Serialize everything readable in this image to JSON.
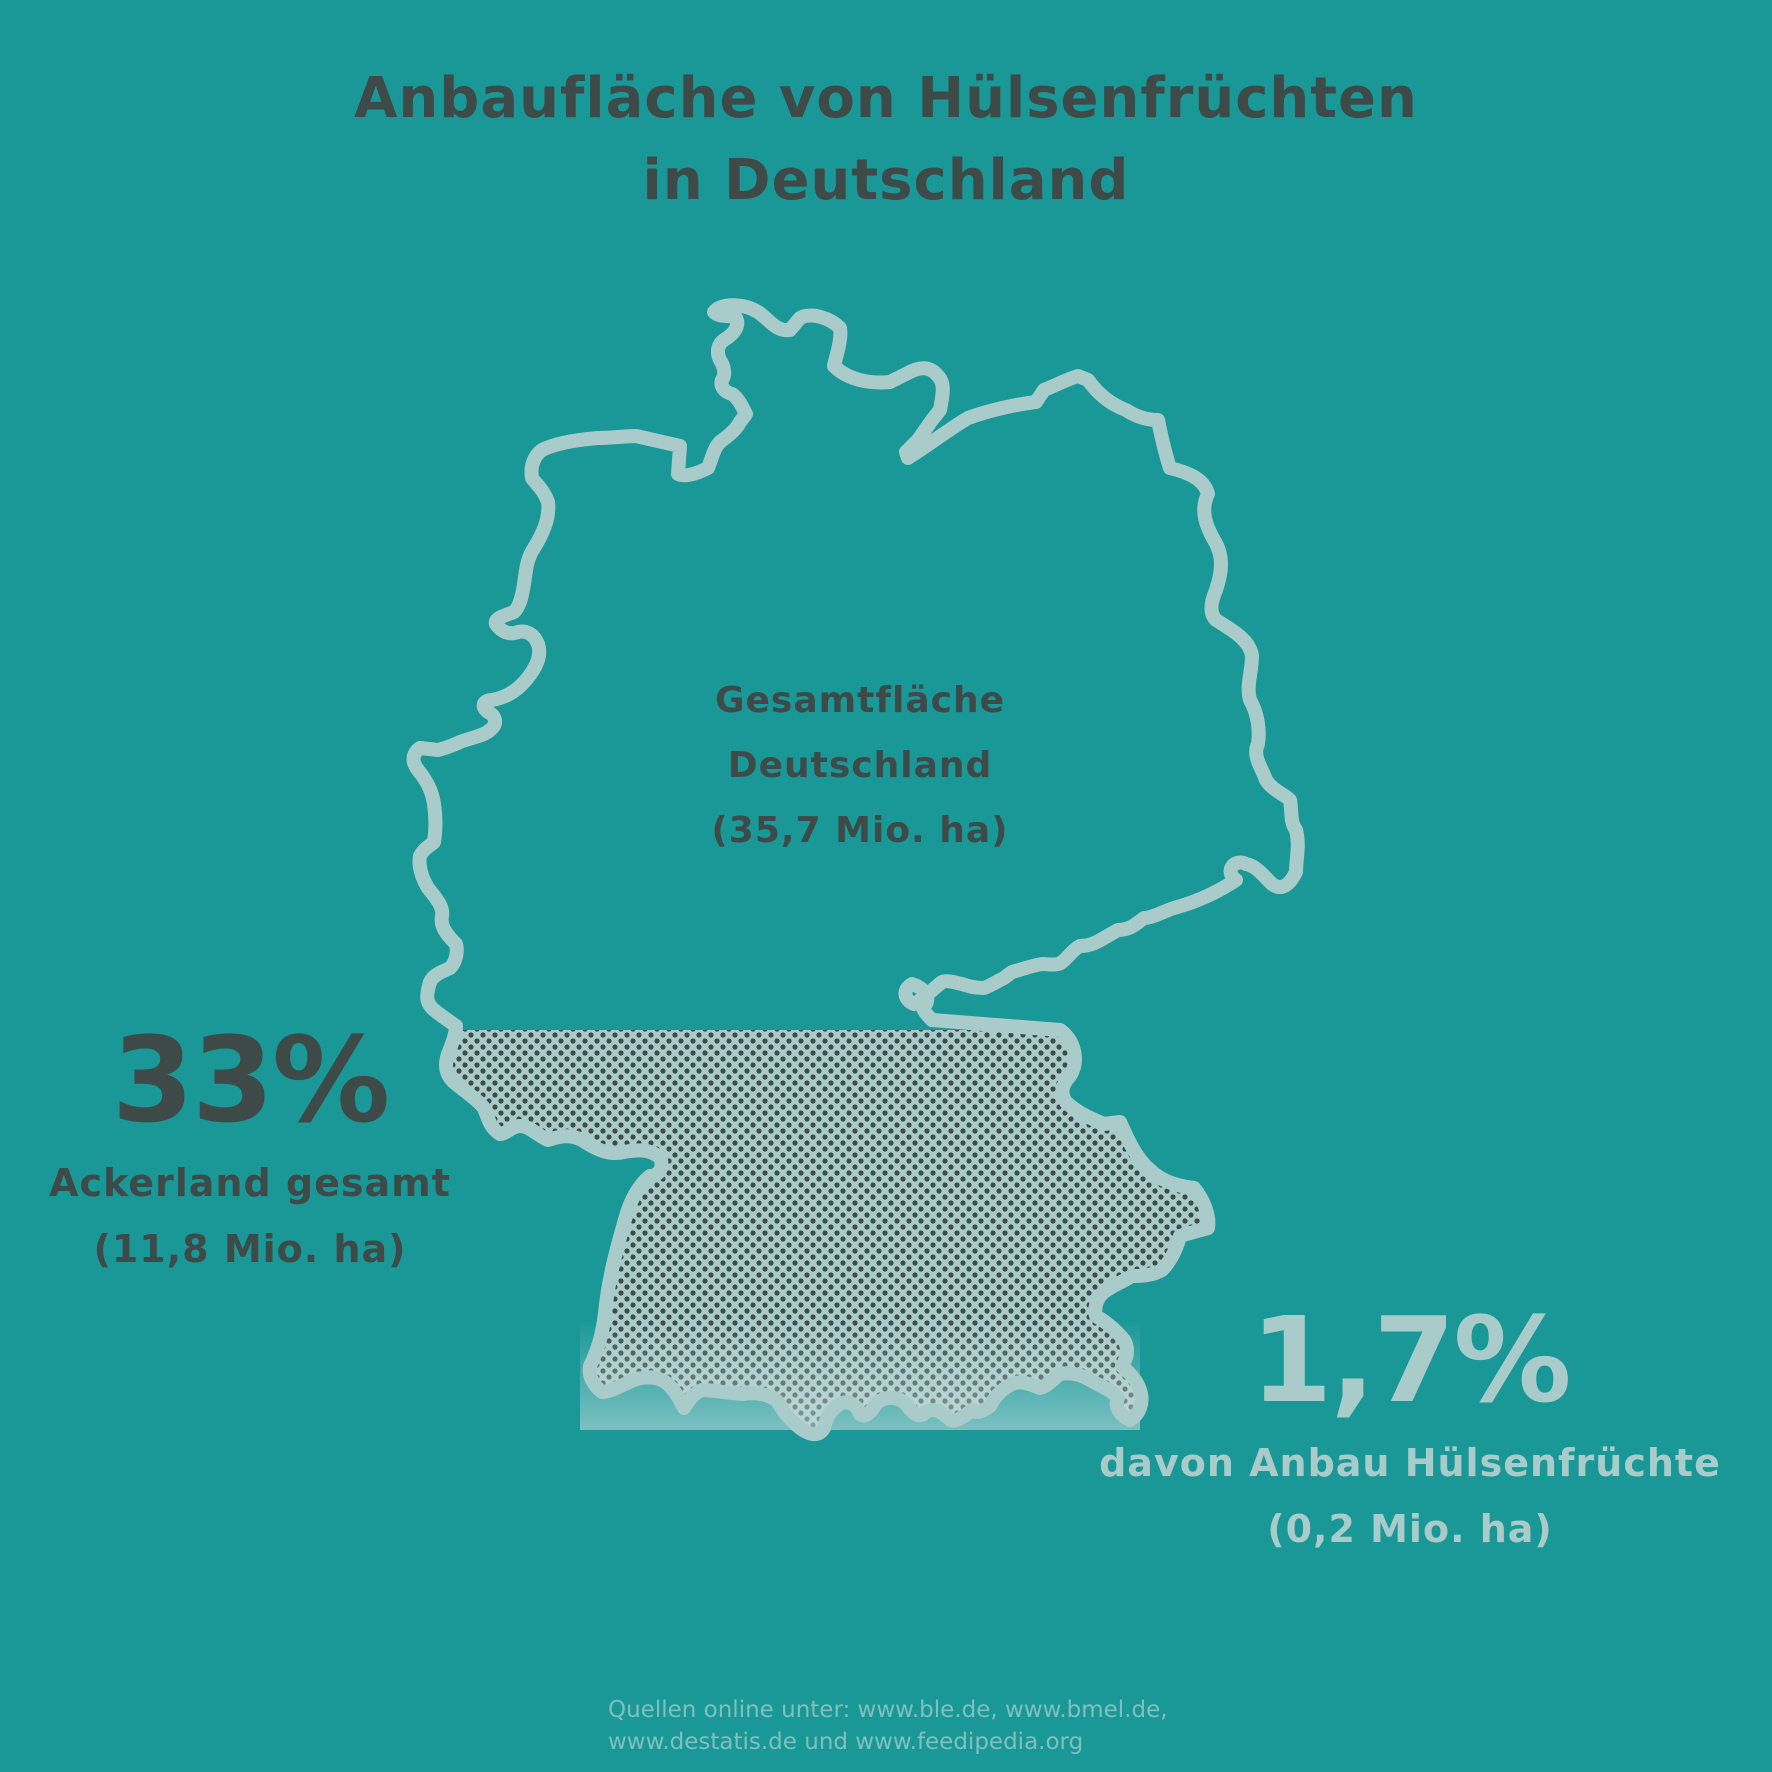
{
  "title": {
    "line1": "Anbaufläche von Hülsenfrüchten",
    "line2": "in Deutschland"
  },
  "total": {
    "line1": "Gesamtfläche",
    "line2": "Deutschland",
    "line3": "(35,7 Mio. ha)"
  },
  "farmland": {
    "percent": "33%",
    "label": "Ackerland gesamt",
    "amount": "(11,8 Mio. ha)",
    "share_of_area": 0.33
  },
  "legumes": {
    "percent": "1,7%",
    "label": "davon Anbau Hülsenfrüchte",
    "amount": "(0,2 Mio. ha)",
    "share_of_farmland": 0.017
  },
  "sources": {
    "line1": "Quellen online unter: www.ble.de, www.bmel.de,",
    "line2": "www.destatis.de und www.feedipedia.org"
  },
  "colors": {
    "background": "#1a9898",
    "dark_text": "#3d4a47",
    "light_accent": "#a9cccb",
    "map_outline": "#a9cccb"
  }
}
